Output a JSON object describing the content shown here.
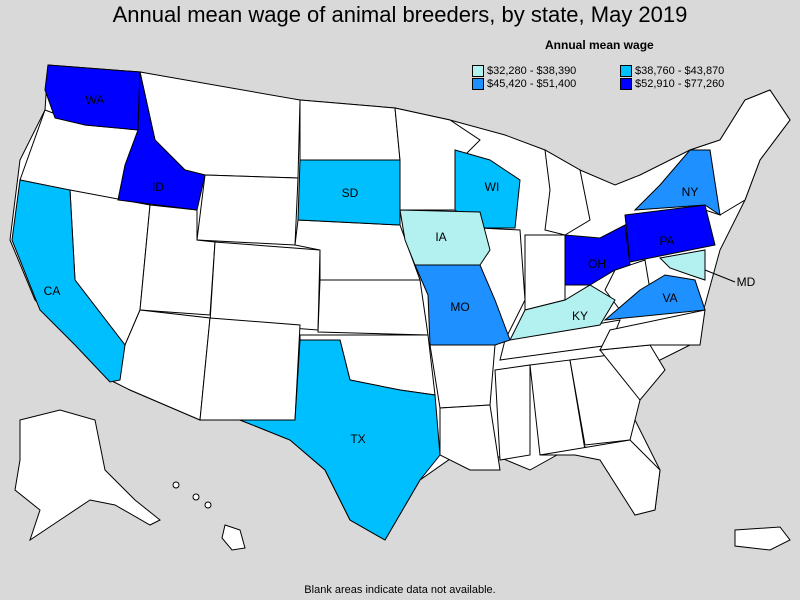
{
  "title": "Annual mean wage of animal breeders, by state, May 2019",
  "legend": {
    "title": "Annual mean wage",
    "items": [
      {
        "range": "$32,280 - $38,390",
        "color": "#b3f0f0"
      },
      {
        "range": "$38,760 - $43,870",
        "color": "#00bfff"
      },
      {
        "range": "$45,420 - $51,400",
        "color": "#1e90ff"
      },
      {
        "range": "$52,910 - $77,260",
        "color": "#0000ff"
      }
    ]
  },
  "states": {
    "WA": "WA",
    "ID": "ID",
    "SD": "SD",
    "WI": "WI",
    "IA": "IA",
    "CA": "CA",
    "MO": "MO",
    "KY": "KY",
    "OH": "OH",
    "PA": "PA",
    "NY": "NY",
    "VA": "VA",
    "MD": "MD",
    "TX": "TX"
  },
  "footnote": "Blank areas indicate data not available."
}
